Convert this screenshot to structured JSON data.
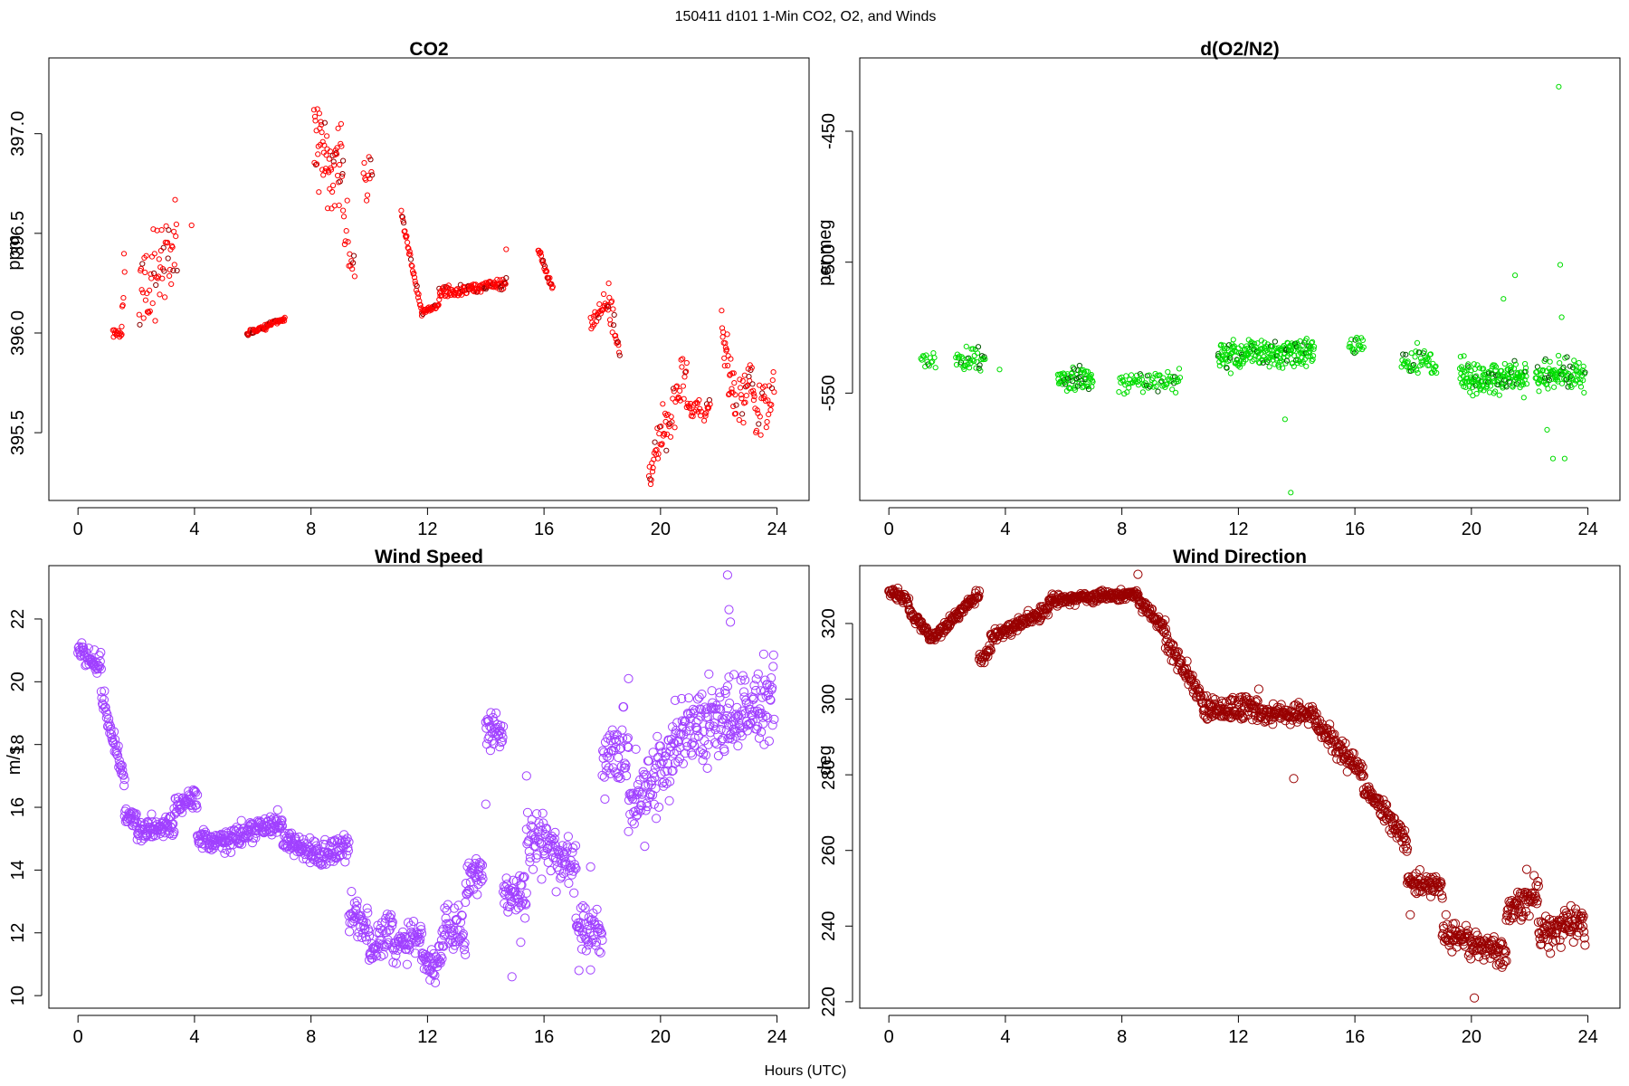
{
  "figure": {
    "suptitle": "150411   d101   1-Min CO2, O2, and Winds",
    "xlabel": "Hours (UTC)"
  },
  "chart_data": [
    {
      "id": "co2",
      "type": "scatter",
      "title": "CO2",
      "xlabel": "",
      "ylabel": "ppm",
      "xlim": [
        -1,
        25.1
      ],
      "ylim": [
        395.16,
        397.38
      ],
      "xticks": [
        0,
        4,
        8,
        12,
        16,
        20,
        24
      ],
      "yticks": [
        395.5,
        396.0,
        396.5,
        397.0
      ],
      "ytick_labels": [
        "395.5",
        "396.0",
        "396.5",
        "397.0"
      ],
      "color": "#ff0000",
      "accent_color": "#8b0000",
      "marker_size": 2.6,
      "segments": [
        {
          "x": [
            1.2,
            1.5
          ],
          "y": [
            396.0,
            396.0
          ],
          "noise": 0.02,
          "n": 14
        },
        {
          "x": [
            1.5,
            1.6
          ],
          "y": [
            396.1,
            396.4
          ],
          "noise": 0.1,
          "n": 6
        },
        {
          "x": [
            2.1,
            3.4
          ],
          "y": [
            396.2,
            396.45
          ],
          "noise": 0.15,
          "n": 60
        },
        {
          "x": [
            3.9,
            3.9
          ],
          "y": [
            396.54,
            396.54
          ],
          "noise": 0.0,
          "n": 1
        },
        {
          "x": [
            5.8,
            7.1
          ],
          "y": [
            396.0,
            396.07
          ],
          "noise": 0.012,
          "n": 70
        },
        {
          "x": [
            8.1,
            9.1
          ],
          "y": [
            396.95,
            396.85
          ],
          "noise": 0.22,
          "n": 60
        },
        {
          "x": [
            9.1,
            9.5
          ],
          "y": [
            396.6,
            396.3
          ],
          "noise": 0.15,
          "n": 15
        },
        {
          "x": [
            9.8,
            10.1
          ],
          "y": [
            396.7,
            396.8
          ],
          "noise": 0.15,
          "n": 12
        },
        {
          "x": [
            11.1,
            11.8
          ],
          "y": [
            396.6,
            396.1
          ],
          "noise": 0.02,
          "n": 35
        },
        {
          "x": [
            11.8,
            12.4
          ],
          "y": [
            396.1,
            396.15
          ],
          "noise": 0.015,
          "n": 30
        },
        {
          "x": [
            12.4,
            14.7
          ],
          "y": [
            396.2,
            396.25
          ],
          "noise": 0.025,
          "n": 120
        },
        {
          "x": [
            14.7,
            14.7
          ],
          "y": [
            396.42,
            396.42
          ],
          "noise": 0.0,
          "n": 1
        },
        {
          "x": [
            15.8,
            16.3
          ],
          "y": [
            396.42,
            396.22
          ],
          "noise": 0.02,
          "n": 25
        },
        {
          "x": [
            17.6,
            18.2
          ],
          "y": [
            396.05,
            396.15
          ],
          "noise": 0.05,
          "n": 25
        },
        {
          "x": [
            18.2,
            18.6
          ],
          "y": [
            396.2,
            395.9
          ],
          "noise": 0.1,
          "n": 20
        },
        {
          "x": [
            19.6,
            20.2
          ],
          "y": [
            395.3,
            395.55
          ],
          "noise": 0.1,
          "n": 30
        },
        {
          "x": [
            20.2,
            20.9
          ],
          "y": [
            395.5,
            395.85
          ],
          "noise": 0.12,
          "n": 30
        },
        {
          "x": [
            20.9,
            21.4
          ],
          "y": [
            395.62,
            395.62
          ],
          "noise": 0.03,
          "n": 20
        },
        {
          "x": [
            21.5,
            21.7
          ],
          "y": [
            395.6,
            395.65
          ],
          "noise": 0.03,
          "n": 10
        },
        {
          "x": [
            22.1,
            22.6
          ],
          "y": [
            396.0,
            395.6
          ],
          "noise": 0.12,
          "n": 30
        },
        {
          "x": [
            22.7,
            23.2
          ],
          "y": [
            395.7,
            395.8
          ],
          "noise": 0.12,
          "n": 25
        },
        {
          "x": [
            23.2,
            23.9
          ],
          "y": [
            395.6,
            395.7
          ],
          "noise": 0.15,
          "n": 30
        }
      ]
    },
    {
      "id": "o2",
      "type": "scatter",
      "title": "d(O2/N2)",
      "xlabel": "",
      "ylabel": "per meg",
      "xlim": [
        -1,
        25.1
      ],
      "ylim": [
        -591,
        -422
      ],
      "xticks": [
        0,
        4,
        8,
        12,
        16,
        20,
        24
      ],
      "yticks": [
        -550,
        -500,
        -450
      ],
      "ytick_labels": [
        "-550",
        "-500",
        "-450"
      ],
      "color": "#00dd00",
      "accent_color": "#005500",
      "marker_size": 2.6,
      "segments": [
        {
          "x": [
            1.1,
            1.6
          ],
          "y": [
            -538,
            -538
          ],
          "noise": 4,
          "n": 15
        },
        {
          "x": [
            2.3,
            3.3
          ],
          "y": [
            -538,
            -538
          ],
          "noise": 4,
          "n": 40
        },
        {
          "x": [
            3.8,
            3.8
          ],
          "y": [
            -541,
            -541
          ],
          "noise": 0,
          "n": 1
        },
        {
          "x": [
            5.8,
            7.0
          ],
          "y": [
            -545,
            -544
          ],
          "noise": 4,
          "n": 70
        },
        {
          "x": [
            7.9,
            10.0
          ],
          "y": [
            -546,
            -546
          ],
          "noise": 4,
          "n": 70
        },
        {
          "x": [
            11.3,
            14.6
          ],
          "y": [
            -536,
            -534
          ],
          "noise": 4.5,
          "n": 220
        },
        {
          "x": [
            15.8,
            16.3
          ],
          "y": [
            -532,
            -532
          ],
          "noise": 4,
          "n": 20
        },
        {
          "x": [
            17.6,
            18.8
          ],
          "y": [
            -538,
            -538
          ],
          "noise": 4.5,
          "n": 50
        },
        {
          "x": [
            19.6,
            21.9
          ],
          "y": [
            -544,
            -544
          ],
          "noise": 5.5,
          "n": 160
        },
        {
          "x": [
            22.2,
            23.9
          ],
          "y": [
            -543,
            -543
          ],
          "noise": 5.5,
          "n": 100
        }
      ],
      "outliers": [
        {
          "x": 13.6,
          "y": -560
        },
        {
          "x": 13.7,
          "y": -531
        },
        {
          "x": 13.8,
          "y": -588
        },
        {
          "x": 21.5,
          "y": -505
        },
        {
          "x": 22.6,
          "y": -564
        },
        {
          "x": 22.8,
          "y": -575
        },
        {
          "x": 23.0,
          "y": -433
        },
        {
          "x": 23.05,
          "y": -501
        },
        {
          "x": 23.1,
          "y": -521
        },
        {
          "x": 23.2,
          "y": -575
        },
        {
          "x": 21.1,
          "y": -514
        }
      ]
    },
    {
      "id": "wspd",
      "type": "scatter",
      "title": "Wind Speed",
      "xlabel": "",
      "ylabel": "m/s",
      "xlim": [
        -1,
        25.1
      ],
      "ylim": [
        9.6,
        23.7
      ],
      "xticks": [
        0,
        4,
        8,
        12,
        16,
        20,
        24
      ],
      "yticks": [
        10,
        12,
        14,
        16,
        18,
        20,
        22
      ],
      "ytick_labels": [
        "10",
        "12",
        "14",
        "16",
        "18",
        "20",
        "22"
      ],
      "color": "#a040ff",
      "accent_color": "#a040ff",
      "marker_size": 4.6,
      "segments": [
        {
          "x": [
            0.0,
            0.8
          ],
          "y": [
            21.0,
            20.4
          ],
          "noise": 0.3,
          "n": 45
        },
        {
          "x": [
            0.8,
            1.6
          ],
          "y": [
            19.5,
            16.8
          ],
          "noise": 0.3,
          "n": 45
        },
        {
          "x": [
            1.6,
            2.0
          ],
          "y": [
            15.8,
            15.7
          ],
          "noise": 0.3,
          "n": 25
        },
        {
          "x": [
            2.0,
            3.3
          ],
          "y": [
            15.2,
            15.4
          ],
          "noise": 0.35,
          "n": 75
        },
        {
          "x": [
            3.3,
            4.1
          ],
          "y": [
            16.0,
            16.3
          ],
          "noise": 0.3,
          "n": 45
        },
        {
          "x": [
            4.1,
            5.3
          ],
          "y": [
            15.0,
            14.9
          ],
          "noise": 0.3,
          "n": 70
        },
        {
          "x": [
            5.3,
            7.0
          ],
          "y": [
            15.1,
            15.5
          ],
          "noise": 0.3,
          "n": 95
        },
        {
          "x": [
            7.0,
            8.2
          ],
          "y": [
            14.9,
            14.5
          ],
          "noise": 0.35,
          "n": 70
        },
        {
          "x": [
            8.2,
            9.3
          ],
          "y": [
            14.4,
            14.7
          ],
          "noise": 0.45,
          "n": 60
        },
        {
          "x": [
            9.3,
            10.0
          ],
          "y": [
            12.6,
            12.2
          ],
          "noise": 0.5,
          "n": 40
        },
        {
          "x": [
            10.0,
            10.8
          ],
          "y": [
            11.2,
            12.4
          ],
          "noise": 0.6,
          "n": 45
        },
        {
          "x": [
            10.8,
            11.8
          ],
          "y": [
            11.5,
            11.8
          ],
          "noise": 0.5,
          "n": 55
        },
        {
          "x": [
            11.8,
            12.5
          ],
          "y": [
            10.9,
            11.2
          ],
          "noise": 0.5,
          "n": 40
        },
        {
          "x": [
            12.5,
            13.3
          ],
          "y": [
            12.2,
            12.0
          ],
          "noise": 0.7,
          "n": 45
        },
        {
          "x": [
            13.3,
            13.9
          ],
          "y": [
            13.5,
            14.0
          ],
          "noise": 0.6,
          "n": 35
        },
        {
          "x": [
            14.0,
            14.6
          ],
          "y": [
            18.5,
            18.4
          ],
          "noise": 0.5,
          "n": 35
        },
        {
          "x": [
            14.6,
            15.4
          ],
          "y": [
            13.3,
            13.2
          ],
          "noise": 0.6,
          "n": 45
        },
        {
          "x": [
            15.4,
            16.4
          ],
          "y": [
            15.0,
            14.8
          ],
          "noise": 0.8,
          "n": 55
        },
        {
          "x": [
            16.4,
            17.1
          ],
          "y": [
            14.3,
            14.0
          ],
          "noise": 0.8,
          "n": 40
        },
        {
          "x": [
            17.1,
            18.0
          ],
          "y": [
            12.2,
            11.8
          ],
          "noise": 0.7,
          "n": 50
        },
        {
          "x": [
            18.0,
            18.9
          ],
          "y": [
            17.5,
            17.8
          ],
          "noise": 1.1,
          "n": 50
        },
        {
          "x": [
            18.9,
            20.5
          ],
          "y": [
            16.0,
            17.8
          ],
          "noise": 1.1,
          "n": 90
        },
        {
          "x": [
            20.5,
            22.3
          ],
          "y": [
            18.3,
            19.0
          ],
          "noise": 1.0,
          "n": 105
        },
        {
          "x": [
            22.3,
            23.9
          ],
          "y": [
            18.8,
            19.6
          ],
          "noise": 1.1,
          "n": 95
        }
      ],
      "outliers": [
        {
          "x": 22.3,
          "y": 23.4
        },
        {
          "x": 22.35,
          "y": 22.3
        },
        {
          "x": 22.4,
          "y": 21.9
        },
        {
          "x": 14.0,
          "y": 16.1
        },
        {
          "x": 14.9,
          "y": 10.6
        },
        {
          "x": 15.2,
          "y": 11.7
        },
        {
          "x": 15.4,
          "y": 17.0
        },
        {
          "x": 17.6,
          "y": 14.1
        },
        {
          "x": 18.9,
          "y": 20.1
        },
        {
          "x": 17.2,
          "y": 10.8
        }
      ]
    },
    {
      "id": "wdir",
      "type": "scatter",
      "title": "Wind Direction",
      "xlabel": "",
      "ylabel": "deg",
      "xlim": [
        -1,
        25.1
      ],
      "ylim": [
        218.3,
        335.3
      ],
      "xticks": [
        0,
        4,
        8,
        12,
        16,
        20,
        24
      ],
      "yticks": [
        220,
        240,
        260,
        280,
        300,
        320
      ],
      "ytick_labels": [
        "220",
        "240",
        "260",
        "280",
        "300",
        "320"
      ],
      "color": "#990000",
      "accent_color": "#990000",
      "marker_size": 4.6,
      "segments": [
        {
          "x": [
            0.0,
            0.7
          ],
          "y": [
            329,
            325
          ],
          "noise": 1.2,
          "n": 40
        },
        {
          "x": [
            0.7,
            1.5
          ],
          "y": [
            323,
            316
          ],
          "noise": 1.2,
          "n": 45
        },
        {
          "x": [
            1.5,
            3.1
          ],
          "y": [
            316,
            328
          ],
          "noise": 1.3,
          "n": 90
        },
        {
          "x": [
            3.1,
            3.5
          ],
          "y": [
            309,
            313
          ],
          "noise": 2.0,
          "n": 20
        },
        {
          "x": [
            3.5,
            5.5
          ],
          "y": [
            316,
            324
          ],
          "noise": 1.6,
          "n": 110
        },
        {
          "x": [
            5.5,
            8.5
          ],
          "y": [
            326,
            328
          ],
          "noise": 1.2,
          "n": 170
        },
        {
          "x": [
            8.5,
            9.5
          ],
          "y": [
            327,
            318
          ],
          "noise": 1.5,
          "n": 55
        },
        {
          "x": [
            9.5,
            10.8
          ],
          "y": [
            315,
            300
          ],
          "noise": 2.2,
          "n": 70
        },
        {
          "x": [
            10.8,
            12.7
          ],
          "y": [
            297,
            298
          ],
          "noise": 2.8,
          "n": 105
        },
        {
          "x": [
            12.7,
            14.7
          ],
          "y": [
            296,
            296
          ],
          "noise": 2.2,
          "n": 110
        },
        {
          "x": [
            14.7,
            16.3
          ],
          "y": [
            293,
            280
          ],
          "noise": 2.5,
          "n": 90
        },
        {
          "x": [
            16.3,
            17.8
          ],
          "y": [
            277,
            262
          ],
          "noise": 2.6,
          "n": 85
        },
        {
          "x": [
            17.8,
            19.0
          ],
          "y": [
            252,
            250
          ],
          "noise": 2.6,
          "n": 65
        },
        {
          "x": [
            19.0,
            21.2
          ],
          "y": [
            238,
            233
          ],
          "noise": 4.0,
          "n": 120
        },
        {
          "x": [
            21.2,
            22.3
          ],
          "y": [
            243,
            249
          ],
          "noise": 3.5,
          "n": 60
        },
        {
          "x": [
            22.3,
            23.9
          ],
          "y": [
            238,
            241
          ],
          "noise": 4.0,
          "n": 90
        }
      ],
      "outliers": [
        {
          "x": 8.55,
          "y": 333
        },
        {
          "x": 13.9,
          "y": 279
        },
        {
          "x": 17.9,
          "y": 243
        },
        {
          "x": 21.9,
          "y": 255
        },
        {
          "x": 20.1,
          "y": 221
        }
      ]
    }
  ]
}
